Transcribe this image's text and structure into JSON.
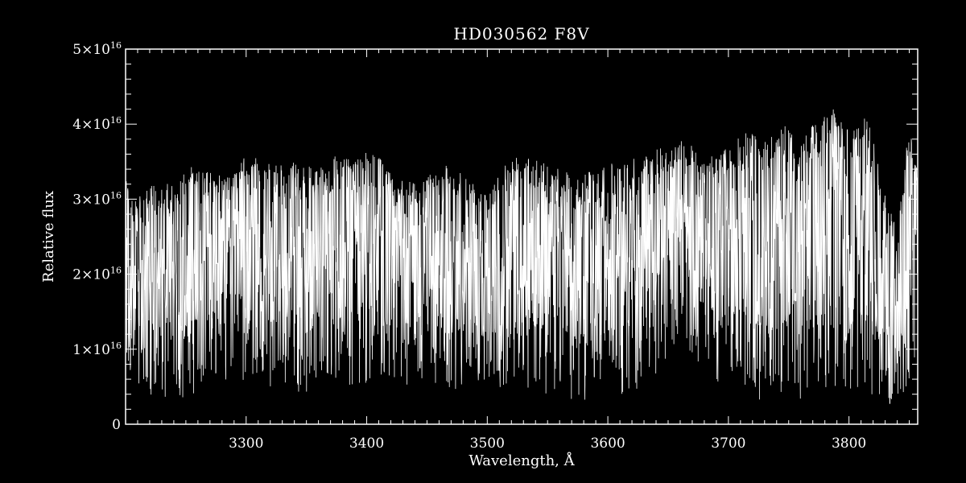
{
  "chart_data": {
    "type": "line",
    "title": "HD030562  F8V",
    "xlabel": "Wavelength, Å",
    "ylabel": "Relative flux",
    "xlim": [
      3200,
      3857
    ],
    "ylim": [
      0,
      5e+16
    ],
    "x_ticks": [
      {
        "value": 3300,
        "label": "3300"
      },
      {
        "value": 3400,
        "label": "3400"
      },
      {
        "value": 3500,
        "label": "3500"
      },
      {
        "value": 3600,
        "label": "3600"
      },
      {
        "value": 3700,
        "label": "3700"
      },
      {
        "value": 3800,
        "label": "3800"
      }
    ],
    "y_ticks": [
      {
        "value": 0,
        "mantissa": "0",
        "exponent": ""
      },
      {
        "value": 1e+16,
        "mantissa": "1×10",
        "exponent": "16"
      },
      {
        "value": 2e+16,
        "mantissa": "2×10",
        "exponent": "16"
      },
      {
        "value": 3e+16,
        "mantissa": "3×10",
        "exponent": "16"
      },
      {
        "value": 4e+16,
        "mantissa": "4×10",
        "exponent": "16"
      },
      {
        "value": 5e+16,
        "mantissa": "5×10",
        "exponent": "16"
      }
    ],
    "grid": false,
    "colors": {
      "background": "#000000",
      "foreground": "#ffffff"
    },
    "series": [
      {
        "envelope": {
          "x": [
            3200,
            3210,
            3225,
            3240,
            3255,
            3270,
            3285,
            3300,
            3315,
            3330,
            3345,
            3360,
            3375,
            3390,
            3400,
            3415,
            3430,
            3445,
            3460,
            3475,
            3490,
            3500,
            3515,
            3530,
            3545,
            3560,
            3575,
            3590,
            3600,
            3615,
            3630,
            3645,
            3660,
            3675,
            3690,
            3700,
            3715,
            3730,
            3745,
            3760,
            3775,
            3785,
            3800,
            3815,
            3830,
            3840,
            3850,
            3857
          ],
          "upper": [
            3.3e+16,
            3e+16,
            3.3e+16,
            3.2e+16,
            3.5e+16,
            3.4e+16,
            3.3e+16,
            3.6e+16,
            3.5e+16,
            3.5e+16,
            3.5e+16,
            3.4e+16,
            3.6e+16,
            3.5e+16,
            3.65e+16,
            3.5e+16,
            3.3e+16,
            3.2e+16,
            3.5e+16,
            3.4e+16,
            3.2e+16,
            3.1e+16,
            3.5e+16,
            3.6e+16,
            3.5e+16,
            3.4e+16,
            3.3e+16,
            3.4e+16,
            3.5e+16,
            3.5e+16,
            3.6e+16,
            3.7e+16,
            3.8e+16,
            3.7e+16,
            3.6e+16,
            3.7e+16,
            3.9e+16,
            3.8e+16,
            4e+16,
            3.8e+16,
            4.1e+16,
            4.25e+16,
            3.9e+16,
            4.2e+16,
            3.1e+16,
            2.6e+16,
            4e+16,
            3.5e+16
          ],
          "lower": [
            8000000000000000.0,
            5000000000000000.0,
            3000000000000000.0,
            3000000000000000.0,
            4000000000000000.0,
            5000000000000000.0,
            5000000000000000.0,
            6000000000000000.0,
            5000000000000000.0,
            5000000000000000.0,
            4000000000000000.0,
            5000000000000000.0,
            4000000000000000.0,
            5000000000000000.0,
            5000000000000000.0,
            6000000000000000.0,
            5000000000000000.0,
            4000000000000000.0,
            5000000000000000.0,
            4000000000000000.0,
            5000000000000000.0,
            5000000000000000.0,
            4000000000000000.0,
            5000000000000000.0,
            4000000000000000.0,
            4000000000000000.0,
            3000000000000000.0,
            3000000000000000.0,
            4000000000000000.0,
            4000000000000000.0,
            5000000000000000.0,
            7000000000000000.0,
            1e+16,
            7000000000000000.0,
            5000000000000000.0,
            4000000000000000.0,
            4000000000000000.0,
            3000000000000000.0,
            4000000000000000.0,
            3000000000000000.0,
            4000000000000000.0,
            5000000000000000.0,
            3000000000000000.0,
            4000000000000000.0,
            3000000000000000.0,
            2000000000000000.0,
            6000000000000000.0,
            1e+16
          ],
          "mean": [
            1.8e+16,
            1.4e+16,
            1.6e+16,
            1.7e+16,
            2.1e+16,
            2e+16,
            1.9e+16,
            2.2e+16,
            2.1e+16,
            2.1e+16,
            2e+16,
            1.8e+16,
            2.1e+16,
            2e+16,
            2.2e+16,
            2.1e+16,
            1.9e+16,
            1.8e+16,
            2e+16,
            2e+16,
            1.9e+16,
            1.8e+16,
            2e+16,
            2.1e+16,
            2e+16,
            1.9e+16,
            1.8e+16,
            1.9e+16,
            2e+16,
            2e+16,
            2.2e+16,
            2.3e+16,
            2.6e+16,
            2.4e+16,
            2.2e+16,
            2.2e+16,
            2.3e+16,
            2.2e+16,
            2.3e+16,
            2.2e+16,
            2.4e+16,
            2.6e+16,
            2.2e+16,
            2.4e+16,
            1.6e+16,
            1.3e+16,
            2.2e+16,
            2e+16
          ]
        }
      }
    ]
  }
}
